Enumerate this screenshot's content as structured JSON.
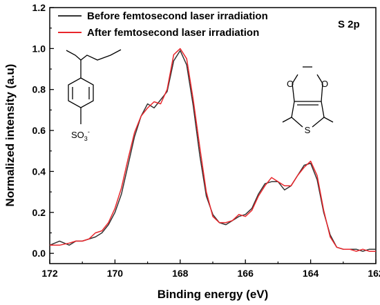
{
  "chart_data": {
    "type": "line",
    "xlabel": "Binding energy (eV)",
    "ylabel": "Normalized intensity (a.u)",
    "xlim": [
      172,
      162
    ],
    "ylim": [
      -0.05,
      1.2
    ],
    "x_reversed": true,
    "xticks": [
      "172",
      "170",
      "168",
      "166",
      "164",
      "162"
    ],
    "yticks": [
      "0.0",
      "0.2",
      "0.4",
      "0.6",
      "0.8",
      "1.0",
      "1.2"
    ],
    "legend_placement": "top-left",
    "annotation": "S 2p",
    "series": [
      {
        "name": "Before femtosecond laser irradiation",
        "color": "#333333",
        "points": [
          [
            172.0,
            0.04
          ],
          [
            171.7,
            0.06
          ],
          [
            171.4,
            0.04
          ],
          [
            171.2,
            0.06
          ],
          [
            171.0,
            0.06
          ],
          [
            170.8,
            0.07
          ],
          [
            170.6,
            0.08
          ],
          [
            170.4,
            0.1
          ],
          [
            170.2,
            0.14
          ],
          [
            170.0,
            0.2
          ],
          [
            169.8,
            0.29
          ],
          [
            169.6,
            0.43
          ],
          [
            169.4,
            0.57
          ],
          [
            169.2,
            0.67
          ],
          [
            169.0,
            0.73
          ],
          [
            168.8,
            0.71
          ],
          [
            168.6,
            0.75
          ],
          [
            168.4,
            0.79
          ],
          [
            168.2,
            0.94
          ],
          [
            168.0,
            0.99
          ],
          [
            167.8,
            0.92
          ],
          [
            167.6,
            0.72
          ],
          [
            167.4,
            0.48
          ],
          [
            167.2,
            0.28
          ],
          [
            167.0,
            0.19
          ],
          [
            166.8,
            0.15
          ],
          [
            166.6,
            0.14
          ],
          [
            166.4,
            0.16
          ],
          [
            166.2,
            0.18
          ],
          [
            166.0,
            0.19
          ],
          [
            165.8,
            0.22
          ],
          [
            165.6,
            0.29
          ],
          [
            165.4,
            0.34
          ],
          [
            165.2,
            0.35
          ],
          [
            165.0,
            0.35
          ],
          [
            164.8,
            0.31
          ],
          [
            164.6,
            0.33
          ],
          [
            164.4,
            0.38
          ],
          [
            164.2,
            0.43
          ],
          [
            164.0,
            0.44
          ],
          [
            163.8,
            0.36
          ],
          [
            163.6,
            0.2
          ],
          [
            163.4,
            0.09
          ],
          [
            163.2,
            0.03
          ],
          [
            163.0,
            0.02
          ],
          [
            162.8,
            0.02
          ],
          [
            162.6,
            0.02
          ],
          [
            162.4,
            0.01
          ],
          [
            162.2,
            0.02
          ],
          [
            162.0,
            0.02
          ]
        ]
      },
      {
        "name": "After femtosecond laser irradiation",
        "color": "#e8262b",
        "points": [
          [
            172.0,
            0.04
          ],
          [
            171.7,
            0.04
          ],
          [
            171.4,
            0.05
          ],
          [
            171.2,
            0.06
          ],
          [
            171.0,
            0.06
          ],
          [
            170.8,
            0.07
          ],
          [
            170.6,
            0.1
          ],
          [
            170.4,
            0.11
          ],
          [
            170.2,
            0.15
          ],
          [
            170.0,
            0.22
          ],
          [
            169.8,
            0.32
          ],
          [
            169.6,
            0.46
          ],
          [
            169.4,
            0.59
          ],
          [
            169.2,
            0.67
          ],
          [
            169.0,
            0.71
          ],
          [
            168.8,
            0.74
          ],
          [
            168.6,
            0.73
          ],
          [
            168.4,
            0.8
          ],
          [
            168.2,
            0.97
          ],
          [
            168.0,
            1.0
          ],
          [
            167.8,
            0.95
          ],
          [
            167.6,
            0.75
          ],
          [
            167.4,
            0.52
          ],
          [
            167.2,
            0.3
          ],
          [
            167.0,
            0.18
          ],
          [
            166.8,
            0.15
          ],
          [
            166.6,
            0.15
          ],
          [
            166.4,
            0.16
          ],
          [
            166.2,
            0.19
          ],
          [
            166.0,
            0.18
          ],
          [
            165.8,
            0.21
          ],
          [
            165.6,
            0.28
          ],
          [
            165.4,
            0.33
          ],
          [
            165.2,
            0.37
          ],
          [
            165.0,
            0.35
          ],
          [
            164.8,
            0.33
          ],
          [
            164.6,
            0.33
          ],
          [
            164.4,
            0.38
          ],
          [
            164.2,
            0.42
          ],
          [
            164.0,
            0.45
          ],
          [
            163.8,
            0.38
          ],
          [
            163.6,
            0.21
          ],
          [
            163.4,
            0.08
          ],
          [
            163.2,
            0.03
          ],
          [
            163.0,
            0.02
          ],
          [
            162.8,
            0.02
          ],
          [
            162.6,
            0.01
          ],
          [
            162.4,
            0.02
          ],
          [
            162.2,
            0.01
          ],
          [
            162.0,
            0.01
          ]
        ]
      }
    ],
    "structures": {
      "left_label": "SO",
      "left_sub": "3",
      "left_sup": "-",
      "right_o_top_left": "O",
      "right_o_top_right": "O",
      "right_s": "S"
    }
  }
}
